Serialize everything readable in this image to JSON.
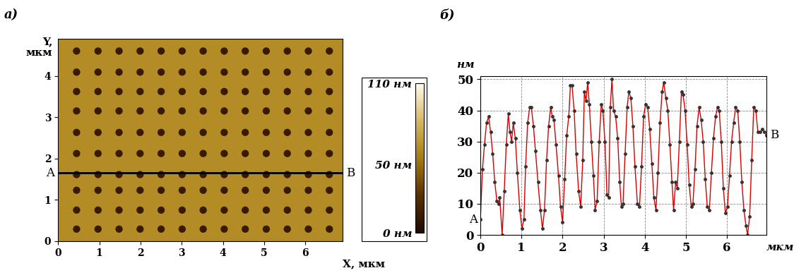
{
  "chart_data": [
    {
      "type": "heatmap",
      "panel_label": "а)",
      "y_label": "Y,\nмкм",
      "x_label": "X, мкм",
      "xlim": [
        0,
        6.9
      ],
      "ylim": [
        0,
        4.9
      ],
      "xticks": [
        0,
        1,
        2,
        3,
        4,
        5,
        6
      ],
      "yticks": [
        0,
        1,
        2,
        3,
        4
      ],
      "surface_value": 62,
      "pit_value": 12,
      "pits_x": [
        0.45,
        0.97,
        1.48,
        1.99,
        2.5,
        3.01,
        3.52,
        4.03,
        4.54,
        5.05,
        5.56,
        6.07,
        6.58
      ],
      "pits_y": [
        0.29,
        0.75,
        1.23,
        1.61,
        2.12,
        2.63,
        3.15,
        3.62,
        4.09,
        4.6
      ],
      "profile_line": {
        "y": 1.65,
        "start_label": "A",
        "end_label": "B",
        "color": "#000000"
      },
      "colorbar": {
        "range": [
          0,
          110
        ],
        "ticks": [
          {
            "value": 0,
            "label": "0 нм"
          },
          {
            "value": 50,
            "label": "50 нм"
          },
          {
            "value": 110,
            "label": "110 нм"
          }
        ]
      }
    },
    {
      "type": "line",
      "panel_label": "б)",
      "y_label": "нм",
      "x_label": "мкм",
      "start_label": "A",
      "end_label": "B",
      "xlim": [
        0,
        6.96
      ],
      "ylim": [
        0,
        51
      ],
      "xticks": [
        0,
        1,
        2,
        3,
        4,
        5,
        6
      ],
      "yticks": [
        0,
        10,
        20,
        30,
        40,
        50
      ],
      "grid": true,
      "color": "#d40000",
      "marker": "o",
      "line_style": "solid",
      "x": [
        0.0,
        0.05,
        0.1,
        0.15,
        0.2,
        0.25,
        0.3,
        0.35,
        0.4,
        0.44,
        0.47,
        0.53,
        0.58,
        0.63,
        0.68,
        0.72,
        0.76,
        0.8,
        0.85,
        0.9,
        0.96,
        1.01,
        1.06,
        1.1,
        1.15,
        1.2,
        1.24,
        1.29,
        1.34,
        1.4,
        1.46,
        1.51,
        1.56,
        1.61,
        1.66,
        1.71,
        1.75,
        1.79,
        1.84,
        1.9,
        1.95,
        2.0,
        2.05,
        2.1,
        2.15,
        2.19,
        2.23,
        2.28,
        2.33,
        2.39,
        2.44,
        2.49,
        2.53,
        2.57,
        2.61,
        2.65,
        2.7,
        2.75,
        2.79,
        2.84,
        2.89,
        2.94,
        2.98,
        3.03,
        3.08,
        3.12,
        3.16,
        3.2,
        3.24,
        3.29,
        3.34,
        3.39,
        3.43,
        3.47,
        3.52,
        3.57,
        3.61,
        3.66,
        3.71,
        3.76,
        3.82,
        3.87,
        3.92,
        3.97,
        4.02,
        4.07,
        4.12,
        4.17,
        4.22,
        4.27,
        4.32,
        4.37,
        4.42,
        4.46,
        4.51,
        4.56,
        4.61,
        4.66,
        4.7,
        4.75,
        4.79,
        4.84,
        4.89,
        4.93,
        4.98,
        5.03,
        5.08,
        5.13,
        5.17,
        5.22,
        5.27,
        5.32,
        5.37,
        5.42,
        5.47,
        5.52,
        5.57,
        5.62,
        5.67,
        5.72,
        5.77,
        5.81,
        5.86,
        5.91,
        5.96,
        6.01,
        6.06,
        6.11,
        6.16,
        6.21,
        6.26,
        6.31,
        6.36,
        6.41,
        6.46,
        6.5,
        6.55,
        6.6,
        6.65,
        6.7,
        6.75,
        6.8,
        6.85,
        6.9,
        6.96
      ],
      "values": [
        5,
        21,
        29,
        36,
        38,
        33,
        26,
        17,
        11,
        10,
        12,
        0,
        14,
        29,
        39,
        33,
        30,
        36,
        31,
        20,
        8,
        2,
        5,
        22,
        36,
        41,
        41,
        35,
        27,
        17,
        8,
        2,
        8,
        24,
        35,
        41,
        38,
        37,
        29,
        19,
        9,
        4,
        18,
        32,
        38,
        48,
        48,
        40,
        26,
        14,
        9,
        24,
        46,
        43,
        49,
        42,
        30,
        19,
        8,
        11,
        30,
        42,
        40,
        30,
        13,
        12,
        41,
        50,
        40,
        38,
        31,
        17,
        9,
        10,
        26,
        41,
        46,
        44,
        35,
        22,
        10,
        9,
        22,
        38,
        42,
        41,
        34,
        23,
        12,
        8,
        20,
        36,
        46,
        49,
        44,
        40,
        29,
        17,
        8,
        17,
        15,
        30,
        46,
        45,
        40,
        29,
        16,
        9,
        10,
        21,
        35,
        41,
        37,
        30,
        18,
        9,
        8,
        20,
        31,
        38,
        41,
        40,
        30,
        15,
        7,
        9,
        19,
        30,
        36,
        41,
        40,
        30,
        17,
        8,
        3,
        0,
        6,
        24,
        41,
        40,
        33,
        33,
        34,
        33,
        32
      ]
    }
  ]
}
